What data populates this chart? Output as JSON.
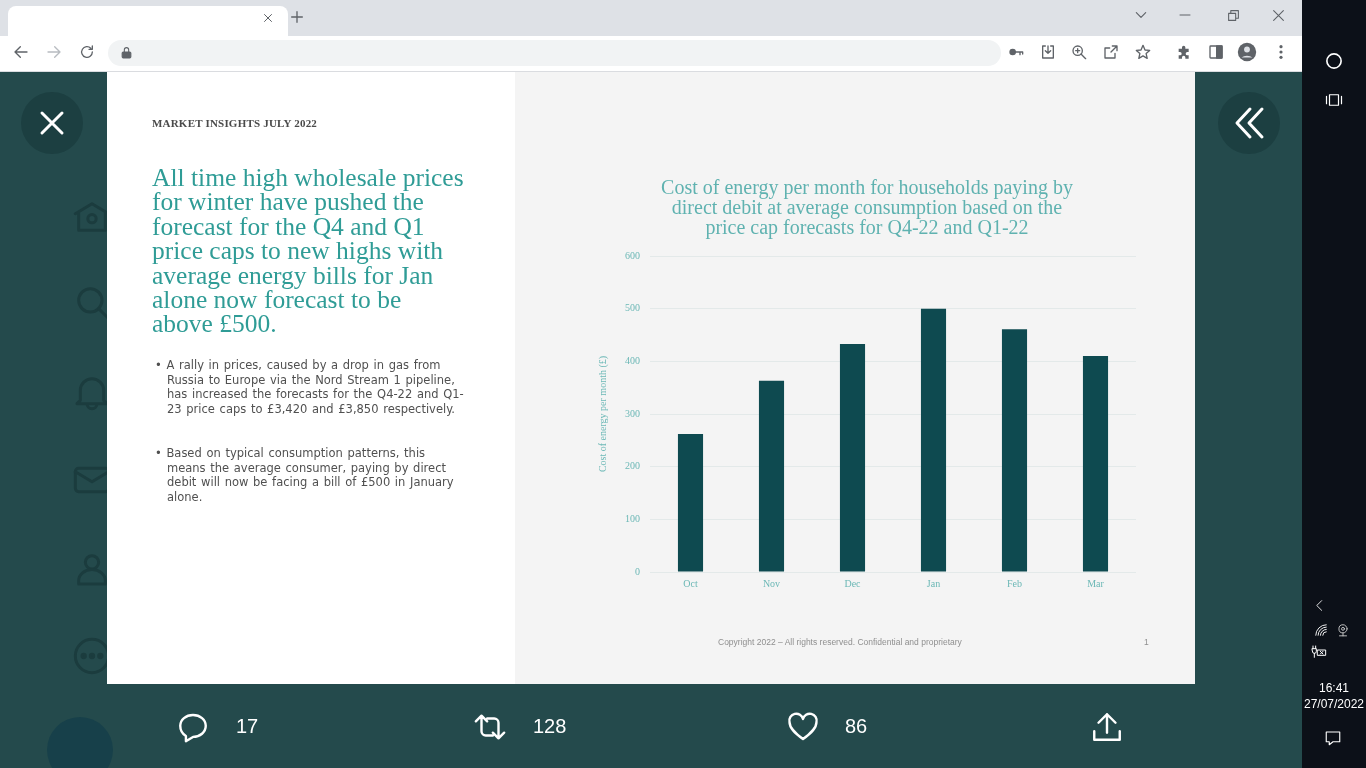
{
  "chart_data": {
    "type": "bar",
    "title": "Cost of energy per month for households paying by direct debit at average consumption based on the price cap forecasts for Q4-22 and Q1-22",
    "ylabel": "Cost of energy per month (£)",
    "categories": [
      "Oct",
      "Nov",
      "Dec",
      "Jan",
      "Feb",
      "Mar"
    ],
    "values": [
      262,
      363,
      433,
      500,
      461,
      410
    ],
    "color": "#0e4a50",
    "ylim": [
      0,
      600
    ],
    "yticks": [
      0,
      100,
      200,
      300,
      400,
      500,
      600
    ],
    "grid": "y",
    "annotations": [
      "MARKET INSIGHTS JULY 2022",
      "All time high wholesale prices for winter have pushed the forecast for the Q4 and Q1 price caps to new highs with average energy bills for Jan alone now forecast to be above £500.",
      "• A rally in prices, caused by a drop in gas from Russia to Europe via the Nord Stream 1 pipeline, has increased the forecasts for the Q4-22 and Q1-23 price caps to £3,420 and £3,850 respectively.",
      "• Based on typical consumption patterns, this means the average consumer, paying by direct debit will now be facing a bill of £500 in January alone.",
      "Copyright 2022 – All rights reserved. Confidential and proprietary",
      "1",
      "17",
      "128",
      "86",
      "16:41",
      "27/07/2022"
    ]
  }
}
